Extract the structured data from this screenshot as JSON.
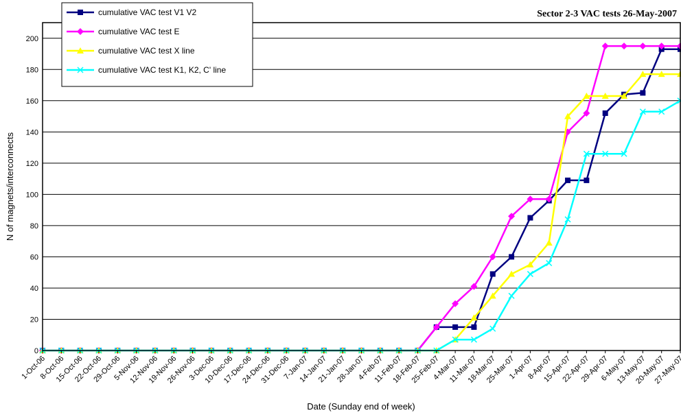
{
  "chart_data": {
    "type": "line",
    "title": "Sector 2-3 VAC tests 26-May-2007",
    "xlabel": "Date (Sunday end of week)",
    "ylabel": "N of magnets/interconnects",
    "ylim": [
      0,
      210
    ],
    "yticks": [
      0,
      20,
      40,
      60,
      80,
      100,
      120,
      140,
      160,
      180,
      200
    ],
    "grid": true,
    "legend_position": "top-left",
    "categories": [
      "1-Oct-06",
      "8-Oct-06",
      "15-Oct-06",
      "22-Oct-06",
      "29-Oct-06",
      "5-Nov-06",
      "12-Nov-06",
      "19-Nov-06",
      "26-Nov-06",
      "3-Dec-06",
      "10-Dec-06",
      "17-Dec-06",
      "24-Dec-06",
      "31-Dec-06",
      "7-Jan-07",
      "14-Jan-07",
      "21-Jan-07",
      "28-Jan-07",
      "4-Feb-07",
      "11-Feb-07",
      "18-Feb-07",
      "25-Feb-07",
      "4-Mar-07",
      "11-Mar-07",
      "18-Mar-07",
      "25-Mar-07",
      "1-Apr-07",
      "8-Apr-07",
      "15-Apr-07",
      "22-Apr-07",
      "29-Apr-07",
      "6-May-07",
      "13-May-07",
      "20-May-07",
      "27-May-07"
    ],
    "series": [
      {
        "name": "cumulative VAC test V1 V2",
        "color": "#000080",
        "marker": "square",
        "values": [
          0,
          0,
          0,
          0,
          0,
          0,
          0,
          0,
          0,
          0,
          0,
          0,
          0,
          0,
          0,
          0,
          0,
          0,
          0,
          0,
          0,
          15,
          15,
          15,
          49,
          60,
          85,
          96,
          109,
          109,
          152,
          164,
          165,
          193,
          193
        ]
      },
      {
        "name": "cumulative VAC test E",
        "color": "#ff00ff",
        "marker": "diamond",
        "values": [
          0,
          0,
          0,
          0,
          0,
          0,
          0,
          0,
          0,
          0,
          0,
          0,
          0,
          0,
          0,
          0,
          0,
          0,
          0,
          0,
          0,
          15,
          30,
          41,
          60,
          86,
          97,
          97,
          140,
          152,
          195,
          195,
          195,
          195,
          195
        ]
      },
      {
        "name": "cumulative VAC test X line",
        "color": "#ffff00",
        "marker": "triangle",
        "values": [
          0,
          0,
          0,
          0,
          0,
          0,
          0,
          0,
          0,
          0,
          0,
          0,
          0,
          0,
          0,
          0,
          0,
          0,
          0,
          0,
          0,
          0,
          7,
          21,
          35,
          49,
          55,
          69,
          150,
          163,
          163,
          163,
          177,
          177,
          177
        ]
      },
      {
        "name": "cumulative VAC test K1, K2, C' line",
        "color": "#00ffff",
        "marker": "x",
        "values": [
          0,
          0,
          0,
          0,
          0,
          0,
          0,
          0,
          0,
          0,
          0,
          0,
          0,
          0,
          0,
          0,
          0,
          0,
          0,
          0,
          0,
          0,
          7,
          7,
          14,
          35,
          49,
          56,
          84,
          126,
          126,
          126,
          153,
          153,
          160
        ]
      }
    ]
  }
}
